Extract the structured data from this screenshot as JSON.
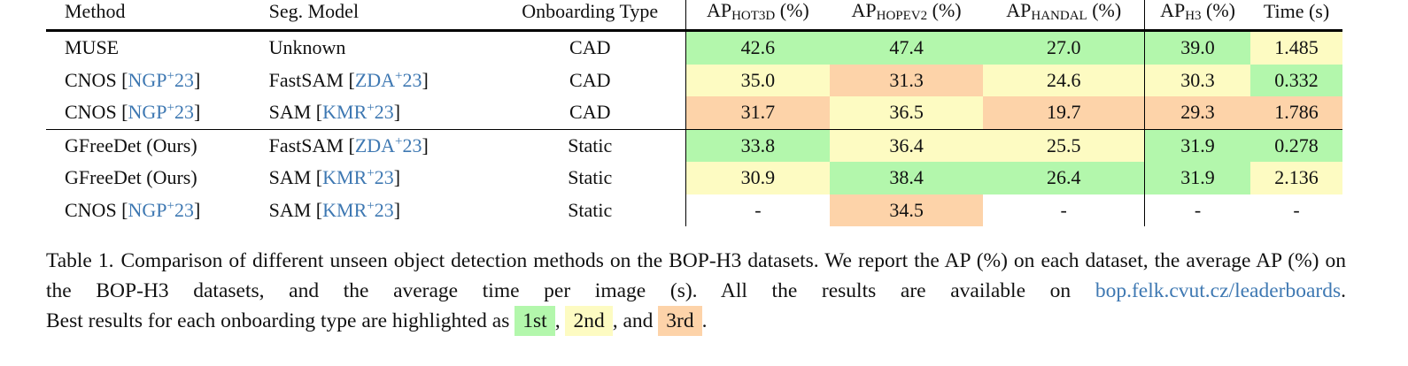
{
  "table": {
    "header": [
      "Method",
      "Seg. Model",
      "Onboarding Type",
      {
        "main": "AP",
        "sub": "HOT3D",
        "unit": "(%)"
      },
      {
        "main": "AP",
        "sub": "HOPEV2",
        "unit": "(%)"
      },
      {
        "main": "AP",
        "sub": "HANDAL",
        "unit": "(%)"
      },
      {
        "main": "AP",
        "sub": "H3",
        "unit": "(%)"
      },
      "Time (s)"
    ],
    "rows": [
      {
        "cells": [
          "MUSE",
          "Unknown",
          "CAD",
          "42.6",
          "47.4",
          "27.0",
          "39.0",
          "1.485"
        ],
        "ranks": [
          null,
          null,
          null,
          0,
          0,
          0,
          0,
          1
        ]
      },
      {
        "cells": [
          [
            "CNOS [",
            "NGP",
            "+",
            "23",
            "]"
          ],
          [
            "FastSAM [",
            "ZDA",
            "+",
            "23",
            "]"
          ],
          "CAD",
          "35.0",
          "31.3",
          "24.6",
          "30.3",
          "0.332"
        ],
        "ranks": [
          null,
          null,
          null,
          1,
          2,
          1,
          1,
          0
        ]
      },
      {
        "cells": [
          [
            "CNOS [",
            "NGP",
            "+",
            "23",
            "]"
          ],
          [
            "SAM [",
            "KMR",
            "+",
            "23",
            "]"
          ],
          "CAD",
          "31.7",
          "36.5",
          "19.7",
          "29.3",
          "1.786"
        ],
        "ranks": [
          null,
          null,
          null,
          2,
          1,
          2,
          2,
          2
        ]
      },
      {
        "cells": [
          "GFreeDet (Ours)",
          [
            "FastSAM [",
            "ZDA",
            "+",
            "23",
            "]"
          ],
          "Static",
          "33.8",
          "36.4",
          "25.5",
          "31.9",
          "0.278"
        ],
        "ranks": [
          null,
          null,
          null,
          0,
          1,
          1,
          0,
          0
        ]
      },
      {
        "cells": [
          "GFreeDet (Ours)",
          [
            "SAM [",
            "KMR",
            "+",
            "23",
            "]"
          ],
          "Static",
          "30.9",
          "38.4",
          "26.4",
          "31.9",
          "2.136"
        ],
        "ranks": [
          null,
          null,
          null,
          1,
          0,
          0,
          0,
          1
        ]
      },
      {
        "cells": [
          [
            "CNOS [",
            "NGP",
            "+",
            "23",
            "]"
          ],
          [
            "SAM [",
            "KMR",
            "+",
            "23",
            "]"
          ],
          "Static",
          "-",
          "34.5",
          "-",
          "-",
          "-"
        ],
        "ranks": [
          null,
          null,
          null,
          null,
          2,
          null,
          null,
          null
        ]
      }
    ]
  },
  "caption": {
    "label": "Table 1.",
    "text": "Comparison of different unseen object detection methods on the BOP-H3 datasets. We report the AP (%) on each dataset, the average AP (%) on the BOP-H3 datasets, and the average time per image (s). All the results are available on",
    "link": "bop.felk.cvut.cz/leaderboards",
    "link_end": ".",
    "legend_intro": "Best results for each onboarding type are highlighted as",
    "legend": [
      {
        "label": "1st",
        "color": "#b3f7ac"
      },
      {
        "label": "2nd",
        "color": "#fdfbc2"
      },
      {
        "label": "3rd",
        "color": "#fdd3a9"
      }
    ],
    "sep1": ",",
    "sep2": ", and",
    "end": "."
  }
}
